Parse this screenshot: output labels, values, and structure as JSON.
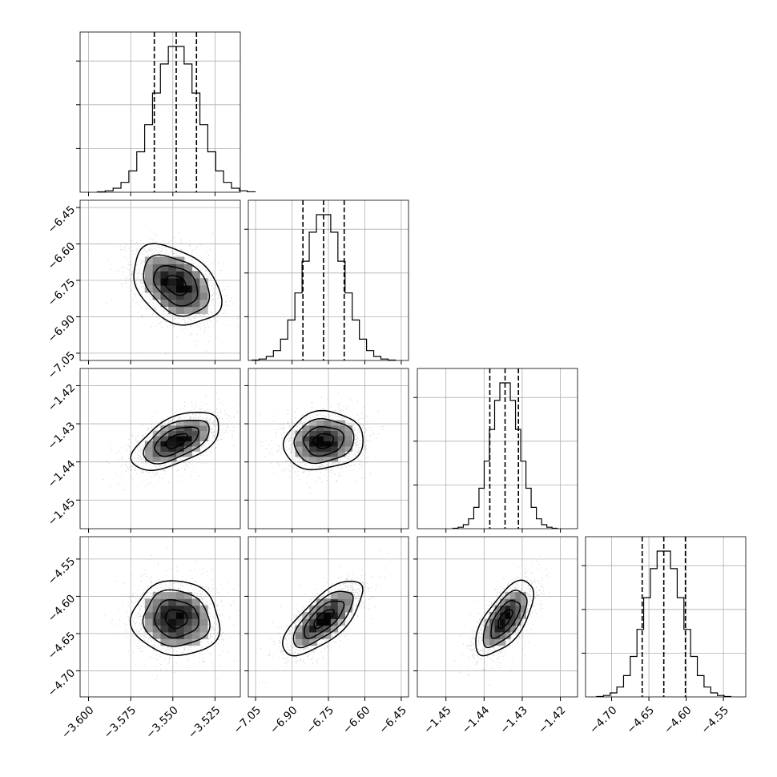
{
  "chart_data": {
    "type": "corner",
    "grid": true,
    "dimensions": [
      {
        "xlim": [
          -3.605,
          -3.51
        ],
        "ylim": [
          -7.08,
          -6.42
        ],
        "ticks": [
          -3.6,
          -3.575,
          -3.55,
          -3.525
        ],
        "tick_labels": [
          "−3.600",
          "−3.575",
          "−3.550",
          "−3.525"
        ],
        "mean": -3.548,
        "sd": 0.013,
        "skew": 0,
        "quantiles": [
          -3.561,
          -3.548,
          -3.536
        ]
      },
      {
        "xlim": [
          -7.08,
          -6.42
        ],
        "ylim": [
          -7.08,
          -6.42
        ],
        "ticks": [
          -7.05,
          -6.9,
          -6.75,
          -6.6,
          -6.45
        ],
        "tick_labels": [
          "−7.05",
          "−6.90",
          "−6.75",
          "−6.60",
          "−6.45"
        ],
        "mean": -6.77,
        "sd": 0.082,
        "skew": 0,
        "quantiles": [
          -6.855,
          -6.77,
          -6.685
        ]
      },
      {
        "xlim": [
          -1.4575,
          -1.4155
        ],
        "ylim": [
          -1.4575,
          -1.4155
        ],
        "ticks": [
          -1.45,
          -1.44,
          -1.43,
          -1.42
        ],
        "tick_labels": [
          "−1.45",
          "−1.44",
          "−1.43",
          "−1.42"
        ],
        "mean": -1.4345,
        "sd": 0.0038,
        "skew": 0,
        "quantiles": [
          -1.4385,
          -1.4345,
          -1.431
        ]
      },
      {
        "xlim": [
          -4.735,
          -4.52
        ],
        "ylim": [
          -4.735,
          -4.52
        ],
        "ticks": [
          -4.7,
          -4.65,
          -4.6,
          -4.55
        ],
        "tick_labels": [
          "−4.70",
          "−4.65",
          "−4.60",
          "−4.55"
        ],
        "mean": -4.63,
        "sd": 0.025,
        "skew": 0,
        "quantiles": [
          -4.659,
          -4.63,
          -4.601
        ]
      }
    ],
    "pairs": [
      {
        "row": 1,
        "col": 0,
        "rho": -0.35
      },
      {
        "row": 2,
        "col": 0,
        "rho": 0.55
      },
      {
        "row": 2,
        "col": 1,
        "rho": 0.1
      },
      {
        "row": 3,
        "col": 0,
        "rho": -0.05
      },
      {
        "row": 3,
        "col": 1,
        "rho": 0.72
      },
      {
        "row": 3,
        "col": 2,
        "rho": 0.65
      }
    ],
    "histogram_bins": 20,
    "contour_levels_sigma": [
      0.5,
      1.0,
      1.5,
      2.0
    ]
  }
}
